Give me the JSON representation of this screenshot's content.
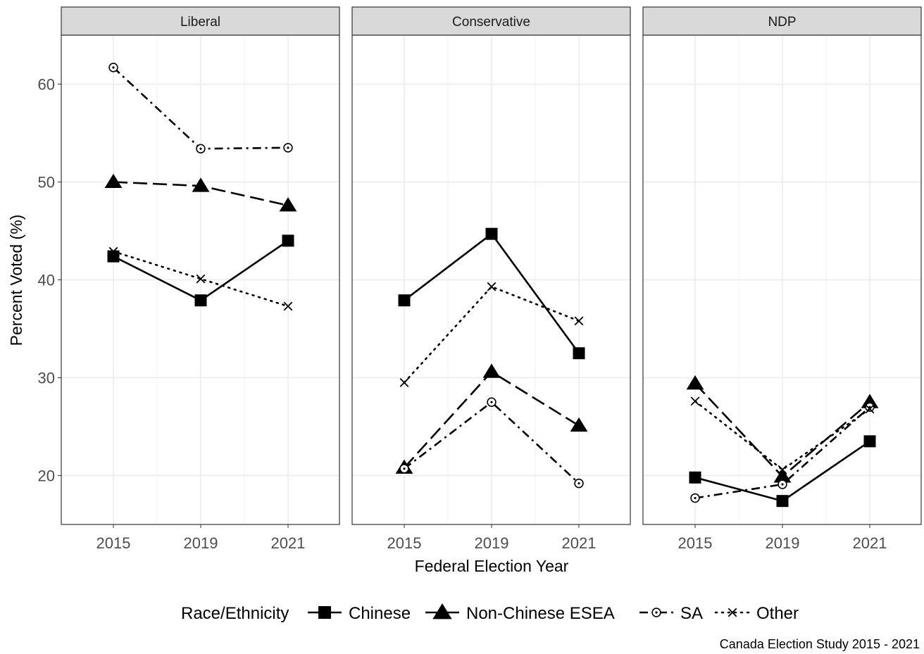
{
  "chart_data": {
    "type": "line",
    "facet_by": "party",
    "panels": [
      {
        "title": "Liberal",
        "series": [
          {
            "name": "Chinese",
            "values": [
              42.4,
              37.9,
              44.0
            ]
          },
          {
            "name": "Non-Chinese ESEA",
            "values": [
              50.0,
              49.6,
              47.6
            ]
          },
          {
            "name": "SA",
            "values": [
              61.7,
              53.4,
              53.5
            ]
          },
          {
            "name": "Other",
            "values": [
              42.9,
              40.1,
              37.3
            ]
          }
        ]
      },
      {
        "title": "Conservative",
        "series": [
          {
            "name": "Chinese",
            "values": [
              37.9,
              44.7,
              32.5
            ]
          },
          {
            "name": "Non-Chinese ESEA",
            "values": [
              20.8,
              30.6,
              25.1
            ]
          },
          {
            "name": "SA",
            "values": [
              20.7,
              27.5,
              19.2
            ]
          },
          {
            "name": "Other",
            "values": [
              29.5,
              39.3,
              35.8
            ]
          }
        ]
      },
      {
        "title": "NDP",
        "series": [
          {
            "name": "Chinese",
            "values": [
              19.8,
              17.4,
              23.5
            ]
          },
          {
            "name": "Non-Chinese ESEA",
            "values": [
              29.4,
              19.9,
              27.5
            ]
          },
          {
            "name": "SA",
            "values": [
              17.7,
              19.1,
              27.0
            ]
          },
          {
            "name": "Other",
            "values": [
              27.6,
              20.6,
              26.8
            ]
          }
        ]
      }
    ],
    "x": [
      "2015",
      "2019",
      "2021"
    ],
    "xlabel": "Federal Election Year",
    "ylabel": "Percent Voted (%)",
    "ylim": [
      15,
      65
    ],
    "yticks": [
      20,
      30,
      40,
      50,
      60
    ],
    "grid": true,
    "legend": {
      "title": "Race/Ethnicity",
      "position": "bottom",
      "entries": [
        "Chinese",
        "Non-Chinese ESEA",
        "SA",
        "Other"
      ]
    },
    "caption": "Canada Election Study 2015 - 2021",
    "styles": {
      "Chinese": {
        "shape": "square",
        "line": "solid"
      },
      "Non-Chinese ESEA": {
        "shape": "triangle",
        "line": "longdash"
      },
      "SA": {
        "shape": "circle-dot",
        "line": "dotdash"
      },
      "Other": {
        "shape": "cross",
        "line": "dotted"
      }
    },
    "colors": {
      "strip_fill": "#d9d9d9",
      "grid": "#ebebeb",
      "ink": "#000000"
    }
  }
}
